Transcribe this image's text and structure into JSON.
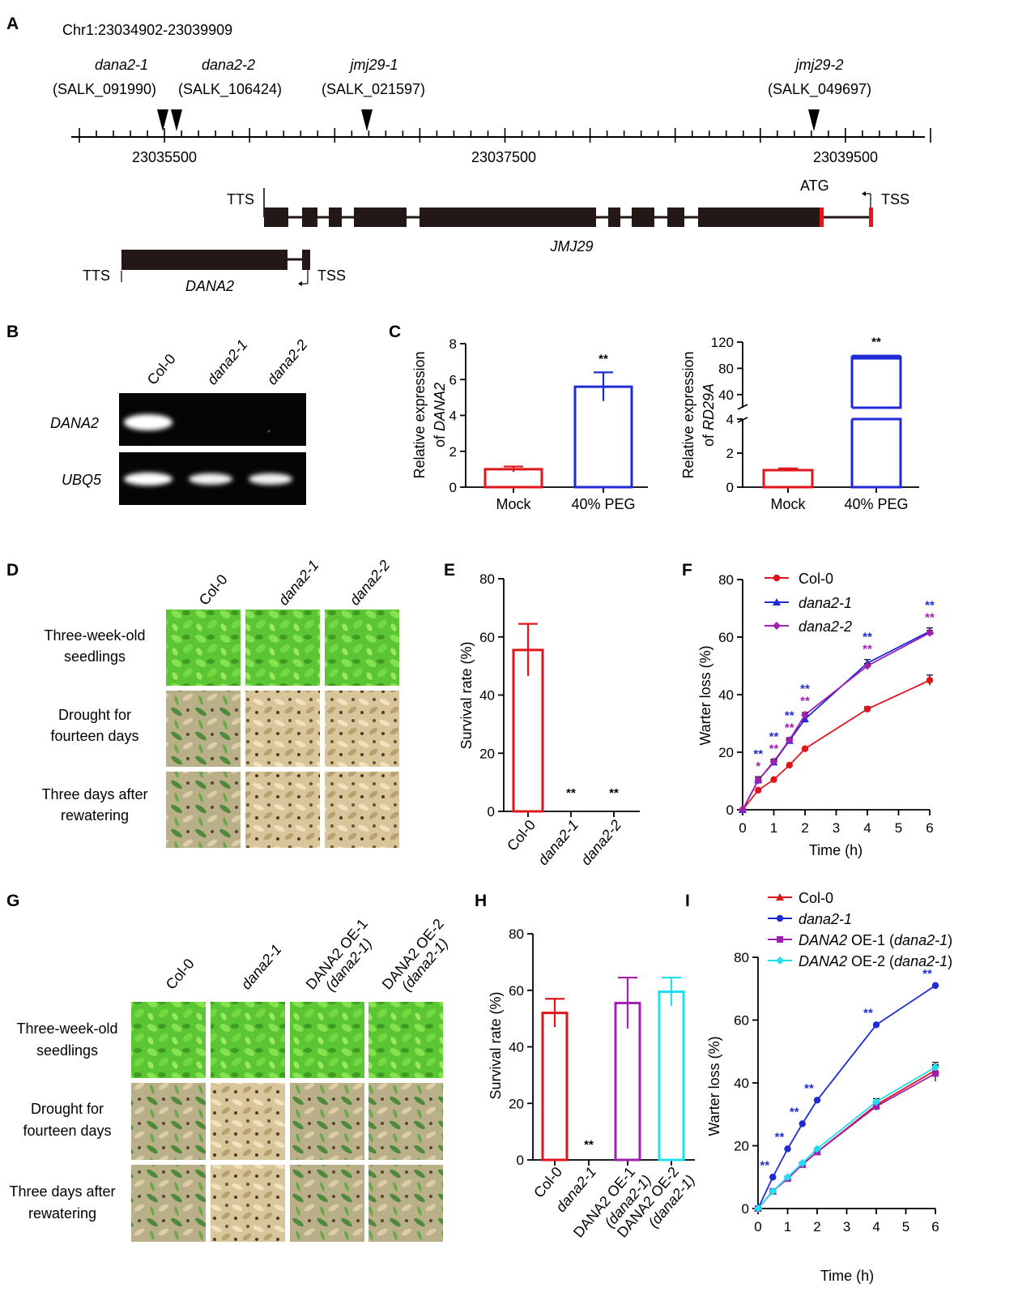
{
  "panelA": {
    "label": "A",
    "locus": "Chr1:23034902-23039909",
    "insertions": [
      {
        "allele": "dana2-1",
        "id": "(SALK_091990)"
      },
      {
        "allele": "dana2-2",
        "id": "(SALK_106424)"
      },
      {
        "allele": "jmj29-1",
        "id": "(SALK_021597)"
      },
      {
        "allele": "jmj29-2",
        "id": "(SALK_049697)"
      }
    ],
    "coords": [
      "23035500",
      "23037500",
      "23039500"
    ],
    "jmj29": {
      "name": "JMJ29",
      "tts": "TTS",
      "tss": "TSS",
      "atg": "ATG"
    },
    "dana2": {
      "name": "DANA2",
      "tts": "TTS",
      "tss": "TSS"
    }
  },
  "panelB": {
    "label": "B",
    "lanes": [
      "Col-0",
      "dana2-1",
      "dana2-2"
    ],
    "genes": [
      "DANA2",
      "UBQ5"
    ]
  },
  "panelC": {
    "label": "C",
    "left": {
      "ylabel_line1": "Relative expression",
      "ylabel_prefix": "of ",
      "ylabel_gene": "DANA2",
      "yticks": [
        "0",
        "2",
        "4",
        "6",
        "8"
      ],
      "star": "**"
    },
    "right": {
      "ylabel_line1": "Relative expression",
      "ylabel_prefix": "of ",
      "ylabel_gene": "RD29A",
      "yticks_low": [
        "0",
        "2",
        "4"
      ],
      "yticks_high": [
        "40",
        "80",
        "120"
      ],
      "star": "**"
    },
    "categories": [
      "Mock",
      "40% PEG"
    ]
  },
  "panelD": {
    "label": "D",
    "columns": [
      "Col-0",
      "dana2-1",
      "dana2-2"
    ],
    "rows": [
      {
        "line1": "Three-week-old",
        "line2": "seedlings"
      },
      {
        "line1": "Drought for",
        "line2": "fourteen days"
      },
      {
        "line1": "Three days after",
        "line2": "rewatering"
      }
    ]
  },
  "panelE": {
    "label": "E",
    "ylabel": "Survival rate (%)",
    "yticks": [
      "0",
      "20",
      "40",
      "60",
      "80"
    ],
    "categories": [
      "Col-0",
      "dana2-1",
      "dana2-2"
    ],
    "stars": [
      "",
      "**",
      "**"
    ]
  },
  "panelF": {
    "label": "F",
    "ylabel": "Warter loss (%)",
    "xlabel": "Time (h)",
    "yticks": [
      "0",
      "20",
      "40",
      "60",
      "80"
    ],
    "xticks": [
      "0",
      "1",
      "2",
      "3",
      "4",
      "5",
      "6"
    ],
    "legend": [
      "Col-0",
      "dana2-1",
      "dana2-2"
    ],
    "star": "**",
    "star_single": "*"
  },
  "panelG": {
    "label": "G",
    "columns": [
      {
        "line1": "Col-0",
        "line2": ""
      },
      {
        "line1": "dana2-1",
        "line2": ""
      },
      {
        "line1": "DANA2 OE-1",
        "line2": "(dana2-1)"
      },
      {
        "line1": "DANA2 OE-2",
        "line2": "(dana2-1)"
      }
    ],
    "rows": [
      {
        "line1": "Three-week-old",
        "line2": "seedlings"
      },
      {
        "line1": "Drought for",
        "line2": "fourteen days"
      },
      {
        "line1": "Three days after",
        "line2": "rewatering"
      }
    ]
  },
  "panelH": {
    "label": "H",
    "ylabel": "Survival rate (%)",
    "yticks": [
      "0",
      "20",
      "40",
      "60",
      "80"
    ],
    "categories": [
      {
        "line1": "Col-0",
        "line2": ""
      },
      {
        "line1": "dana2-1",
        "line2": ""
      },
      {
        "line1": "DANA2 OE-1",
        "line2": "(dana2-1)"
      },
      {
        "line1": "DANA2 OE-2",
        "line2": "(dana2-1)"
      }
    ],
    "star": "**"
  },
  "panelI": {
    "label": "I",
    "ylabel": "Warter loss (%)",
    "xlabel": "Time (h)",
    "yticks": [
      "0",
      "20",
      "40",
      "60",
      "80"
    ],
    "xticks": [
      "0",
      "1",
      "2",
      "3",
      "4",
      "5",
      "6"
    ],
    "legend": [
      {
        "gene": "",
        "text": "Col-0",
        "italic": false
      },
      {
        "gene": "",
        "text": "dana2-1",
        "italic": true
      },
      {
        "gene": "DANA2",
        "text": " OE-1 (",
        "italic2": "dana2-1",
        "close": ")"
      },
      {
        "gene": "DANA2",
        "text": " OE-2 (",
        "italic2": "dana2-1",
        "close": ")"
      }
    ],
    "star": "**"
  },
  "chart_data": [
    {
      "panel": "C-left",
      "type": "bar",
      "title": "",
      "categories": [
        "Mock",
        "40% PEG"
      ],
      "values": [
        1.0,
        5.6
      ],
      "errors": [
        0.15,
        0.8
      ],
      "colors": [
        "#e0161c",
        "#1e2bd6"
      ],
      "ylim": [
        0,
        8
      ],
      "ylabel": "Relative expression of DANA2"
    },
    {
      "panel": "C-right",
      "type": "bar",
      "title": "",
      "categories": [
        "Mock",
        "40% PEG"
      ],
      "values": [
        1.0,
        97.0
      ],
      "errors": [
        0.1,
        2.0
      ],
      "colors": [
        "#e0161c",
        "#1e2bd6"
      ],
      "ylim": [
        0,
        120
      ],
      "axis_break": [
        4,
        20
      ],
      "ylabel": "Relative expression of RD29A"
    },
    {
      "panel": "E",
      "type": "bar",
      "title": "",
      "categories": [
        "Col-0",
        "dana2-1",
        "dana2-2"
      ],
      "values": [
        55.5,
        0,
        0
      ],
      "errors": [
        9,
        0,
        0
      ],
      "colors": [
        "#e0161c",
        "#1e2bd6",
        "#a020b0"
      ],
      "ylim": [
        0,
        80
      ],
      "ylabel": "Survival rate (%)"
    },
    {
      "panel": "F",
      "type": "line",
      "title": "",
      "x": [
        0,
        0.5,
        1,
        1.5,
        2,
        4,
        6
      ],
      "xlim": [
        0,
        6
      ],
      "ylim": [
        0,
        80
      ],
      "xlabel": "Time (h)",
      "ylabel": "Warter loss (%)",
      "series": [
        {
          "name": "Col-0",
          "color": "#e0161c",
          "marker": "circle",
          "values": [
            0,
            6.8,
            10.5,
            15.5,
            21.2,
            35,
            45
          ],
          "errors": [
            0,
            0.5,
            0.5,
            0.5,
            0.5,
            0.8,
            1.8
          ]
        },
        {
          "name": "dana2-1",
          "color": "#1e2bd6",
          "marker": "triangle",
          "values": [
            0,
            10.3,
            16.5,
            24,
            31.5,
            51,
            62
          ],
          "errors": [
            0,
            1.2,
            0.8,
            0.8,
            1.2,
            1.2,
            1.2
          ]
        },
        {
          "name": "dana2-2",
          "color": "#a020b0",
          "marker": "diamond",
          "values": [
            0,
            10.2,
            16.8,
            24.2,
            33,
            50,
            61.5
          ],
          "errors": [
            0,
            0.8,
            0.8,
            0.8,
            0.8,
            0.8,
            0.8
          ]
        }
      ],
      "significance_x": [
        0.5,
        1,
        1.5,
        2,
        4,
        6
      ]
    },
    {
      "panel": "H",
      "type": "bar",
      "title": "",
      "categories": [
        "Col-0",
        "dana2-1",
        "DANA2 OE-1 (dana2-1)",
        "DANA2 OE-2 (dana2-1)"
      ],
      "values": [
        52,
        0,
        55.5,
        59.5
      ],
      "errors": [
        5,
        0,
        9,
        5
      ],
      "colors": [
        "#e0161c",
        "#1e2bd6",
        "#a020b0",
        "#1fe0f0"
      ],
      "ylim": [
        0,
        80
      ],
      "ylabel": "Survival rate (%)"
    },
    {
      "panel": "I",
      "type": "line",
      "title": "",
      "x": [
        0,
        0.5,
        1,
        1.5,
        2,
        4,
        6
      ],
      "xlim": [
        0,
        6
      ],
      "ylim": [
        0,
        80
      ],
      "xlabel": "Time (h)",
      "ylabel": "Warter loss (%)",
      "series": [
        {
          "name": "Col-0",
          "color": "#e0161c",
          "marker": "triangle",
          "values": [
            0,
            5.5,
            10,
            14,
            18,
            33,
            44
          ],
          "errors": [
            0,
            0.4,
            0.4,
            0.5,
            0.5,
            1,
            1.8
          ]
        },
        {
          "name": "dana2-1",
          "color": "#1e2bd6",
          "marker": "circle",
          "values": [
            0,
            10,
            19,
            27,
            34.5,
            58.5,
            71
          ],
          "errors": [
            0,
            0.4,
            0.4,
            0.5,
            0.5,
            0.5,
            0.6
          ]
        },
        {
          "name": "DANA2 OE-1 (dana2-1)",
          "color": "#a020b0",
          "marker": "square",
          "values": [
            0,
            5.5,
            9.5,
            14,
            18,
            32.5,
            43
          ],
          "errors": [
            0,
            0.4,
            0.4,
            0.5,
            0.5,
            1.2,
            2.5
          ]
        },
        {
          "name": "DANA2 OE-2 (dana2-1)",
          "color": "#1fe0f0",
          "marker": "diamond",
          "values": [
            0,
            5.5,
            10,
            14.5,
            19,
            34,
            45
          ],
          "errors": [
            0,
            0.4,
            0.4,
            0.5,
            0.5,
            1,
            1.5
          ]
        }
      ],
      "significance_x": [
        0.5,
        1,
        1.5,
        2,
        4,
        6
      ]
    }
  ]
}
